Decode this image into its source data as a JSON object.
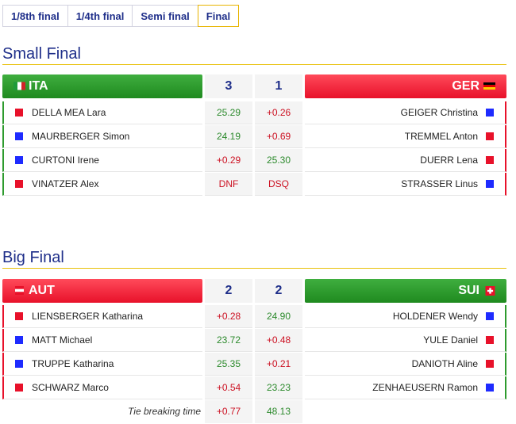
{
  "tabs": [
    {
      "label": "1/8th final"
    },
    {
      "label": "1/4th final"
    },
    {
      "label": "Semi final"
    },
    {
      "label": "Final"
    }
  ],
  "small_final": {
    "title": "Small Final",
    "left_team": {
      "code": "ITA",
      "score": "3",
      "flag": "italy-flag-icon"
    },
    "right_team": {
      "code": "GER",
      "score": "1",
      "flag": "germany-flag-icon"
    },
    "rows": [
      {
        "left_name": "DELLA MEA Lara",
        "left_color": "red",
        "left_value": "25.29",
        "right_value": "+0.26",
        "right_name": "GEIGER Christina",
        "right_color": "blue"
      },
      {
        "left_name": "MAURBERGER Simon",
        "left_color": "blue",
        "left_value": "24.19",
        "right_value": "+0.69",
        "right_name": "TREMMEL Anton",
        "right_color": "red"
      },
      {
        "left_name": "CURTONI Irene",
        "left_color": "blue",
        "left_value": "+0.29",
        "right_value": "25.30",
        "right_name": "DUERR Lena",
        "right_color": "red"
      },
      {
        "left_name": "VINATZER Alex",
        "left_color": "red",
        "left_value": "DNF",
        "right_value": "DSQ",
        "right_name": "STRASSER Linus",
        "right_color": "blue"
      }
    ]
  },
  "big_final": {
    "title": "Big Final",
    "left_team": {
      "code": "AUT",
      "score": "2",
      "flag": "austria-flag-icon"
    },
    "right_team": {
      "code": "SUI",
      "score": "2",
      "flag": "switzerland-flag-icon"
    },
    "rows": [
      {
        "left_name": "LIENSBERGER Katharina",
        "left_color": "red",
        "left_value": "+0.28",
        "right_value": "24.90",
        "right_name": "HOLDENER Wendy",
        "right_color": "blue"
      },
      {
        "left_name": "MATT Michael",
        "left_color": "blue",
        "left_value": "23.72",
        "right_value": "+0.48",
        "right_name": "YULE Daniel",
        "right_color": "red"
      },
      {
        "left_name": "TRUPPE Katharina",
        "left_color": "blue",
        "left_value": "25.35",
        "right_value": "+0.21",
        "right_name": "DANIOTH Aline",
        "right_color": "red"
      },
      {
        "left_name": "SCHWARZ Marco",
        "left_color": "red",
        "left_value": "+0.54",
        "right_value": "23.23",
        "right_name": "ZENHAEUSERN Ramon",
        "right_color": "blue"
      }
    ],
    "tie_break": {
      "label": "Tie breaking time",
      "left_value": "+0.77",
      "right_value": "48.13"
    }
  },
  "colors": {
    "title_blue": "#1f2f8a",
    "green_header": "#2e9b2e",
    "red_header": "#e8112a",
    "accent_rule": "#e8c10a",
    "time_green": "#2c8a2c",
    "time_red": "#cc1122"
  }
}
